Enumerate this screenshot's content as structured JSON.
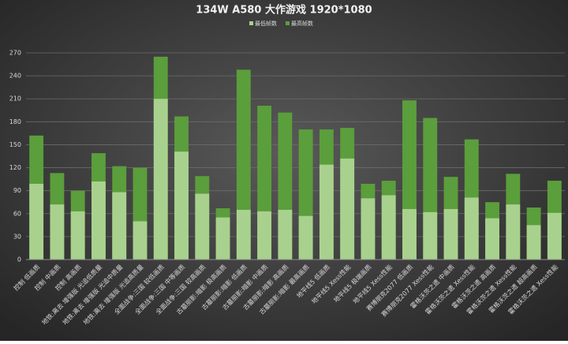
{
  "chart_data": {
    "type": "bar",
    "title": "134W A580 大作游戏 1920*1080",
    "categories": [
      "控制 低画质",
      "控制 中画质",
      "控制 高画质",
      "地铁:离去 增强版 光追低质量",
      "地铁:离去 增强版 光追中质量",
      "地铁:离去 增强版 光追高质量",
      "全面战争:三国 较低画质",
      "全面战争:三国 中等画质",
      "全面战争:三国 较高画质",
      "古墓丽影:暗影 极高画质",
      "古墓丽影:暗影 低画质",
      "古墓丽影:暗影 中画质",
      "古墓丽影:暗影 高画质",
      "古墓丽影:暗影 最高画质",
      "地平线5 低画质",
      "地平线5 Xess性能",
      "地平线5 极端画质",
      "地平线5 Xess性能",
      "赛博朋克2077 低画质",
      "赛博朋克2077 Xess性能",
      "霍格沃茨之遗 中画质",
      "霍格沃茨之遗 Xess性能",
      "霍格沃茨之遗 高画质",
      "霍格沃茨之遗 Xess性能",
      "霍格沃茨之遗 超高画质",
      "霍格沃茨之遗 Xess性能"
    ],
    "series": [
      {
        "name": "最低帧数",
        "color": "#a9d18e",
        "values": [
          99,
          72,
          63,
          102,
          88,
          50,
          210,
          141,
          86,
          55,
          65,
          63,
          65,
          57,
          124,
          132,
          80,
          84,
          66,
          62,
          66,
          81,
          54,
          72,
          45,
          61
        ]
      },
      {
        "name": "最高帧数",
        "color": "#5b9e3c",
        "values": [
          162,
          113,
          90,
          139,
          122,
          120,
          265,
          187,
          109,
          67,
          248,
          201,
          192,
          170,
          170,
          172,
          99,
          103,
          208,
          185,
          108,
          157,
          75,
          112,
          68,
          103
        ]
      }
    ],
    "ylim": [
      0,
      270
    ],
    "yticks": [
      0,
      30,
      60,
      90,
      120,
      150,
      180,
      210,
      240,
      270
    ],
    "grid": true
  }
}
